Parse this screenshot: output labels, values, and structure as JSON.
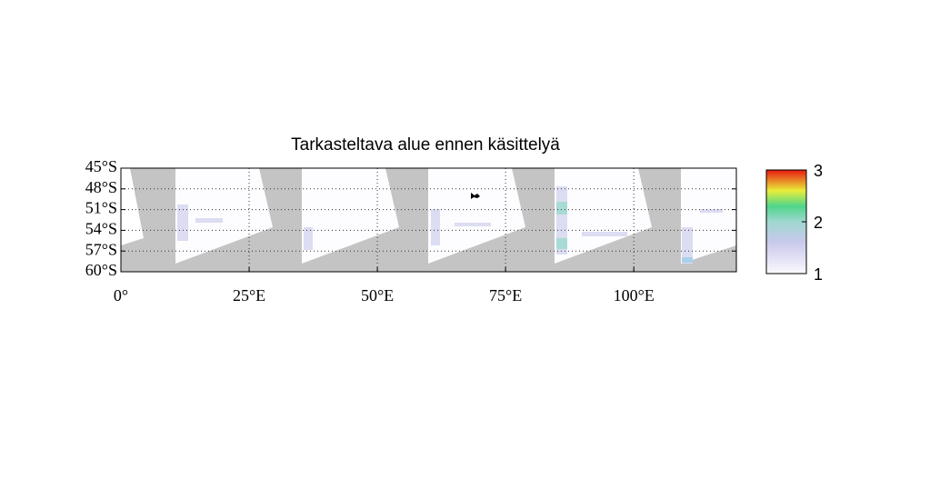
{
  "title": "Tarkasteltava alue ennen käsittelyä",
  "map": {
    "xlim": [
      0,
      120
    ],
    "ylim": [
      -60,
      -45
    ],
    "xticks": [
      {
        "value": 0,
        "label": "0°"
      },
      {
        "value": 25,
        "label": "25°E"
      },
      {
        "value": 50,
        "label": "50°E"
      },
      {
        "value": 75,
        "label": "75°E"
      },
      {
        "value": 100,
        "label": "100°E"
      }
    ],
    "yticks": [
      {
        "value": -45,
        "label": "45°S"
      },
      {
        "value": -48,
        "label": "48°S"
      },
      {
        "value": -51,
        "label": "51°S"
      },
      {
        "value": -54,
        "label": "54°S"
      },
      {
        "value": -57,
        "label": "57°S"
      },
      {
        "value": -60,
        "label": "60°S"
      }
    ],
    "grid": true
  },
  "colorbar": {
    "lim": [
      1,
      3
    ],
    "ticks": [
      1,
      2,
      3
    ]
  }
}
